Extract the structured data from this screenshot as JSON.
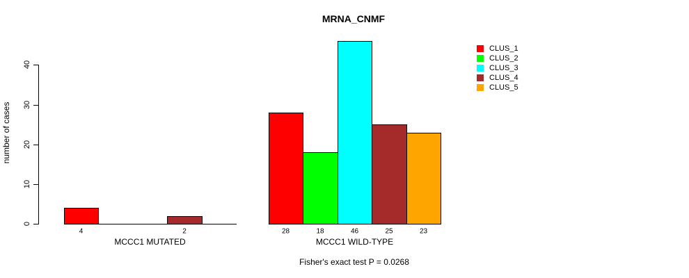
{
  "chart_data": {
    "type": "bar",
    "title": "MRNA_CNMF",
    "ylabel": "number of cases",
    "xlabel": "",
    "ylim": [
      0,
      46
    ],
    "yticks": [
      0,
      10,
      20,
      30,
      40
    ],
    "grid": false,
    "legend_position": "top-right",
    "bar_border_color": "#000000",
    "series": [
      {
        "name": "CLUS_1",
        "color": "#FF0000"
      },
      {
        "name": "CLUS_2",
        "color": "#00FF00"
      },
      {
        "name": "CLUS_3",
        "color": "#00FFFF"
      },
      {
        "name": "CLUS_4",
        "color": "#A52A2A"
      },
      {
        "name": "CLUS_5",
        "color": "#FFA500"
      }
    ],
    "categories": [
      "MCCC1 MUTATED",
      "MCCC1 WILD-TYPE"
    ],
    "groups": [
      {
        "label": "MCCC1 MUTATED",
        "values": [
          4,
          0,
          0,
          2,
          0
        ]
      },
      {
        "label": "MCCC1 WILD-TYPE",
        "values": [
          28,
          18,
          46,
          25,
          23
        ]
      }
    ],
    "bar_value_labels": true,
    "annotation": "Fisher's exact test P = 0.0268"
  }
}
